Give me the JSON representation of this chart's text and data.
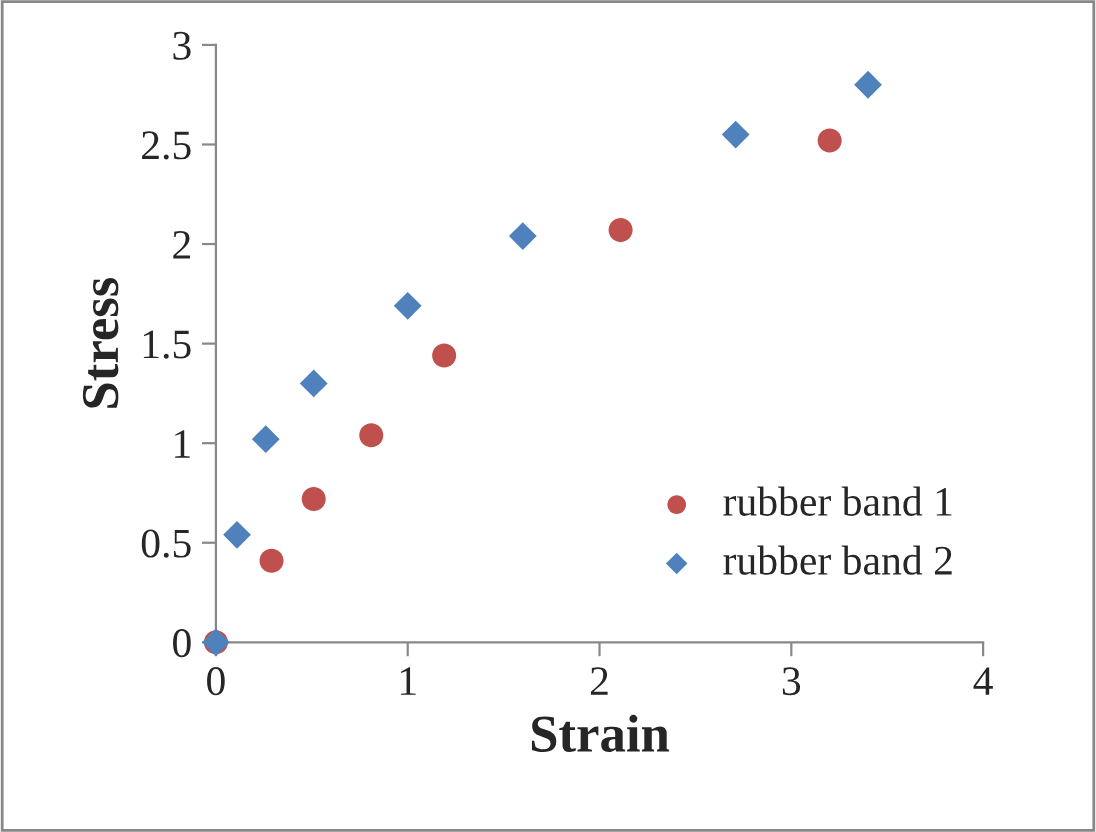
{
  "chart_data": {
    "type": "scatter",
    "xlabel": "Strain",
    "ylabel": "Stress",
    "xlim": [
      0,
      4
    ],
    "ylim": [
      0,
      3
    ],
    "xticks": [
      0,
      1,
      2,
      3,
      4
    ],
    "yticks": [
      0,
      0.5,
      1,
      1.5,
      2,
      2.5,
      3
    ],
    "grid": false,
    "legend": "bottom right",
    "series": [
      {
        "name": "rubber band 1",
        "color": "#c0504d",
        "marker": "circle",
        "x": [
          0,
          0.29,
          0.51,
          0.81,
          1.19,
          2.11,
          3.2
        ],
        "values": [
          0,
          0.41,
          0.72,
          1.04,
          1.44,
          2.07,
          2.52
        ]
      },
      {
        "name": "rubber band 2",
        "color": "#4f81bd",
        "marker": "diamond",
        "x": [
          0,
          0.11,
          0.26,
          0.51,
          1.0,
          1.6,
          2.71,
          3.4
        ],
        "values": [
          0,
          0.54,
          1.02,
          1.3,
          1.69,
          2.04,
          2.55,
          2.8
        ]
      }
    ]
  }
}
